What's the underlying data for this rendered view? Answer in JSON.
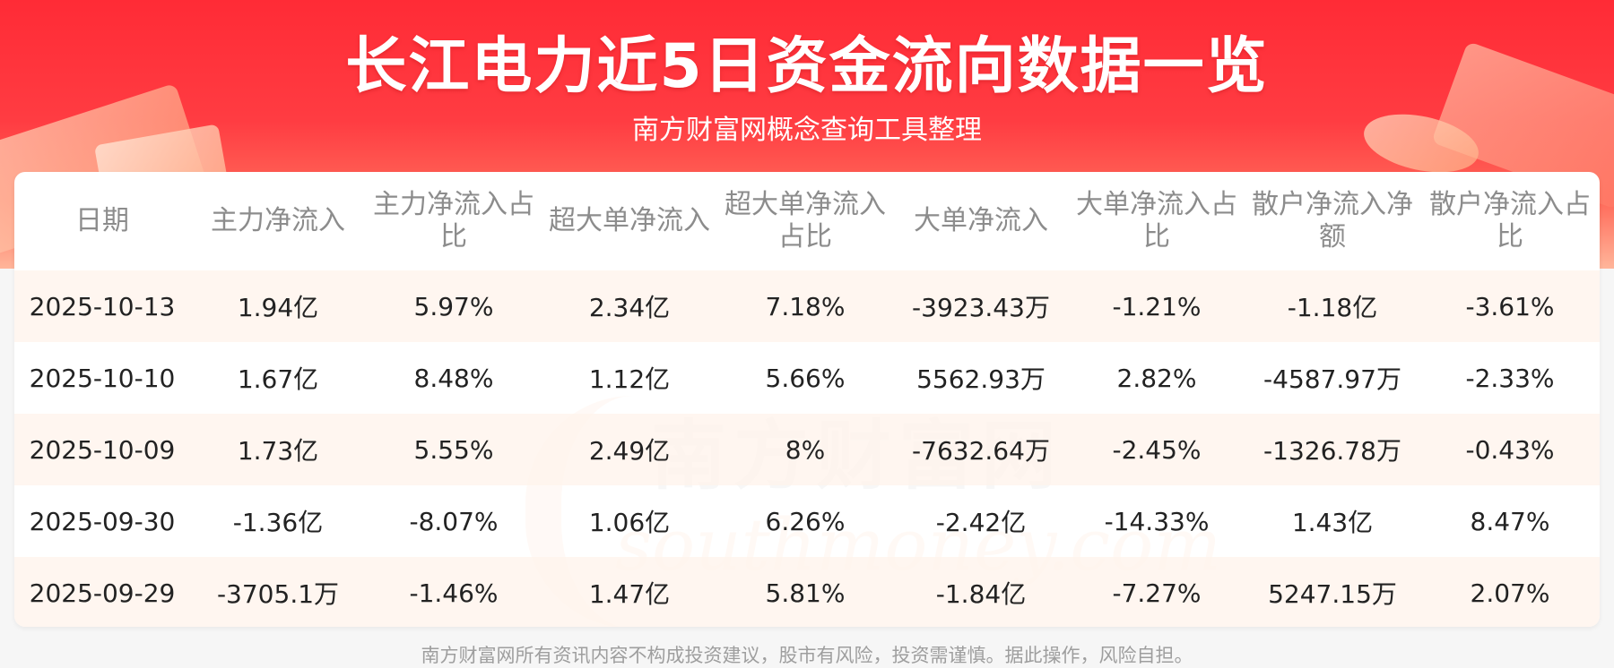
{
  "header": {
    "title": "长江电力近5日资金流向数据一览",
    "subtitle": "南方财富网概念查询工具整理"
  },
  "watermark": {
    "cn": "南方财富网",
    "en": "southmoney.com"
  },
  "table": {
    "headers": [
      "日期",
      "主力净流入",
      "主力净流入占比",
      "超大单净流入",
      "超大单净流入占比",
      "大单净流入",
      "大单净流入占比",
      "散户净流入净额",
      "散户净流入占比"
    ],
    "rows": [
      [
        "2025-10-13",
        "1.94亿",
        "5.97%",
        "2.34亿",
        "7.18%",
        "-3923.43万",
        "-1.21%",
        "-1.18亿",
        "-3.61%"
      ],
      [
        "2025-10-10",
        "1.67亿",
        "8.48%",
        "1.12亿",
        "5.66%",
        "5562.93万",
        "2.82%",
        "-4587.97万",
        "-2.33%"
      ],
      [
        "2025-10-09",
        "1.73亿",
        "5.55%",
        "2.49亿",
        "8%",
        "-7632.64万",
        "-2.45%",
        "-1326.78万",
        "-0.43%"
      ],
      [
        "2025-09-30",
        "-1.36亿",
        "-8.07%",
        "1.06亿",
        "6.26%",
        "-2.42亿",
        "-14.33%",
        "1.43亿",
        "8.47%"
      ],
      [
        "2025-09-29",
        "-3705.1万",
        "-1.46%",
        "1.47亿",
        "5.81%",
        "-1.84亿",
        "-7.27%",
        "5247.15万",
        "2.07%"
      ]
    ]
  },
  "footer": {
    "disclaimer": "南方财富网所有资讯内容不构成投资建议，股市有风险，投资需谨慎。据此操作，风险自担。"
  },
  "colors": {
    "header_red": "#ff2b36",
    "row_tint": "#fff5ee",
    "header_text": "#8c8c8c"
  }
}
